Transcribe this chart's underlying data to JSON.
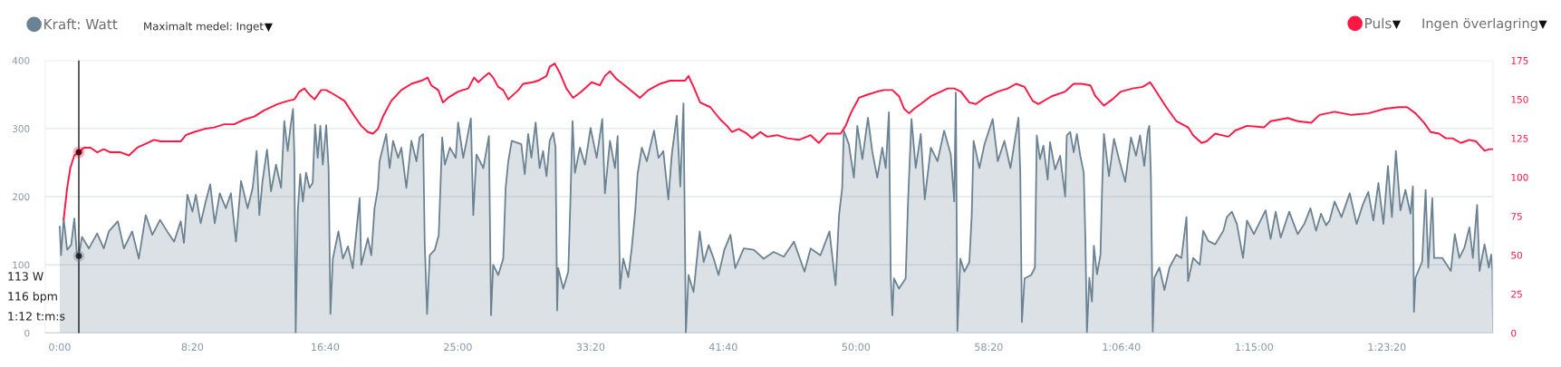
{
  "chart_data": {
    "type": "area",
    "series": [
      {
        "name": "Kraft: Watt",
        "color": "#6b8293",
        "x": [
          0,
          5,
          15,
          28,
          43,
          55,
          65,
          72,
          84,
          110,
          141,
          166,
          185,
          219,
          242,
          273,
          298,
          324,
          349,
          378,
          405,
          431,
          456,
          468,
          481,
          500,
          513,
          531,
          550,
          567,
          584,
          603,
          626,
          645,
          664,
          683,
          708,
          727,
          742,
          752,
          764,
          781,
          796,
          815,
          834,
          846,
          859,
          869,
          879,
          884,
          889,
          897,
          906,
          916,
          928,
          941,
          953,
          962,
          972,
          982,
          991,
          1004,
          1013,
          1020,
          1029,
          1050,
          1067,
          1086,
          1104,
          1130,
          1136,
          1161,
          1174,
          1186,
          1199,
          1205,
          1230,
          1243,
          1256,
          1275,
          1287,
          1306,
          1325,
          1344,
          1356,
          1369,
          1375,
          1384,
          1394,
          1413,
          1428,
          1441,
          1451,
          1470,
          1492,
          1501,
          1520,
          1533,
          1549,
          1558,
          1570,
          1596,
          1617,
          1625,
          1633,
          1652,
          1671,
          1680,
          1690,
          1703,
          1739,
          1752,
          1765,
          1777,
          1793,
          1808,
          1821,
          1834,
          1846,
          1859,
          1868,
          1874,
          1878,
          1897,
          1916,
          1924,
          1932,
          1941,
          1960,
          1979,
          2000,
          2023,
          2044,
          2054,
          2073,
          2092,
          2102,
          2111,
          2123,
          2142,
          2155,
          2168,
          2177,
          2193,
          2212,
          2239,
          2256,
          2274,
          2293,
          2306,
          2325,
          2338,
          2350,
          2354,
          2359,
          2369,
          2388,
          2411,
          2426,
          2445,
          2464,
          2482,
          2504,
          2527,
          2545,
          2577,
          2615,
          2652,
          2690,
          2728,
          2766,
          2806,
          2829,
          2866,
          2900,
          2923,
          2936,
          2948,
          2954,
          2973,
          2992,
          3005,
          3024,
          3045,
          3061,
          3080,
          3099,
          3112,
          3124,
          3131,
          3137,
          3143,
          3162,
          3187,
          3196,
          3209,
          3225,
          3244,
          3259,
          3282,
          3307,
          3332,
          3357,
          3370,
          3376,
          3382,
          3393,
          3408,
          3427,
          3436,
          3443,
          3465,
          3484,
          3515,
          3534,
          3559,
          3582,
          3612,
          3619,
          3625,
          3635,
          3660,
          3674,
          3681,
          3693,
          3706,
          3722,
          3731,
          3750,
          3769,
          3788,
          3794,
          3807,
          3820,
          3832,
          3845,
          3858,
          3864,
          3870,
          3879,
          3889,
          3896,
          3908,
          3921,
          3927,
          3934,
          3953,
          3972,
          3991,
          4014,
          4036,
          4055,
          4070,
          4086,
          4099,
          4105,
          4111,
          4118,
          4124,
          4143,
          4162,
          4181,
          4207,
          4226,
          4245,
          4251,
          4270,
          4295,
          4308,
          4327,
          4353,
          4384,
          4397,
          4416,
          4435,
          4458,
          4473,
          4499,
          4524,
          4543,
          4562,
          4581,
          4600,
          4632,
          4664,
          4689,
          4712,
          4733,
          4752,
          4771,
          4784,
          4803,
          4829,
          4860,
          4886,
          4911,
          4930,
          4949,
          4968,
          4987,
          5004,
          5019,
          5034,
          5051,
          5070,
          5089,
          5098,
          5102,
          5108,
          5133,
          5146,
          5156,
          5171,
          5178,
          5209,
          5241,
          5256,
          5273,
          5292,
          5311,
          5324,
          5340,
          5349,
          5368,
          5384,
          5393,
          5398,
          5400
        ],
        "values": [
          156,
          114,
          168,
          122,
          129,
          168,
          114,
          113,
          141,
          124,
          146,
          124,
          149,
          164,
          124,
          149,
          109,
          173,
          144,
          166,
          149,
          134,
          164,
          132,
          203,
          178,
          203,
          161,
          193,
          218,
          161,
          205,
          183,
          205,
          134,
          223,
          183,
          213,
          267,
          173,
          223,
          269,
          208,
          247,
          213,
          311,
          267,
          301,
          329,
          262,
          0,
          178,
          233,
          193,
          235,
          213,
          220,
          306,
          257,
          304,
          247,
          305,
          242,
          28,
          109,
          149,
          109,
          127,
          95,
          198,
          100,
          139,
          114,
          183,
          213,
          252,
          292,
          242,
          282,
          257,
          272,
          213,
          282,
          252,
          287,
          292,
          134,
          28,
          114,
          122,
          144,
          287,
          247,
          272,
          257,
          309,
          257,
          282,
          315,
          173,
          262,
          242,
          289,
          26,
          100,
          85,
          109,
          213,
          252,
          282,
          277,
          233,
          292,
          257,
          309,
          242,
          267,
          230,
          282,
          294,
          272,
          33,
          95,
          65,
          90,
          193,
          311,
          235,
          272,
          247,
          301,
          257,
          314,
          205,
          282,
          242,
          289,
          65,
          109,
          82,
          124,
          178,
          233,
          272,
          252,
          297,
          257,
          267,
          196,
          262,
          319,
          215,
          337,
          193,
          0,
          85,
          60,
          149,
          104,
          129,
          109,
          85,
          122,
          144,
          95,
          124,
          122,
          109,
          119,
          112,
          134,
          90,
          124,
          114,
          149,
          70,
          173,
          213,
          297,
          277,
          228,
          304,
          255,
          316,
          267,
          228,
          272,
          242,
          324,
          80,
          26,
          80,
          65,
          80,
          193,
          314,
          242,
          292,
          196,
          272,
          252,
          297,
          262,
          193,
          353,
          3,
          109,
          90,
          104,
          173,
          282,
          242,
          277,
          314,
          252,
          282,
          242,
          316,
          233,
          16,
          80,
          85,
          96,
          290,
          255,
          275,
          225,
          280,
          240,
          260,
          200,
          290,
          295,
          265,
          292,
          260,
          235,
          140,
          1,
          81,
          46,
          128,
          86,
          115,
          210,
          292,
          230,
          285,
          255,
          222,
          287,
          260,
          290,
          245,
          295,
          304,
          230,
          2,
          81,
          96,
          63,
          96,
          115,
          110,
          170,
          76,
          110,
          100,
          150,
          135,
          130,
          150,
          170,
          178,
          160,
          110,
          165,
          145,
          165,
          180,
          138,
          178,
          140,
          178,
          145,
          160,
          183,
          150,
          175,
          158,
          165,
          193,
          170,
          205,
          160,
          190,
          207,
          165,
          220,
          160,
          245,
          170,
          267,
          180,
          210,
          175,
          215,
          31,
          81,
          105,
          210,
          96,
          198,
          110,
          110,
          91,
          145,
          110,
          125,
          155,
          110,
          188,
          91,
          130,
          96,
          115,
          91,
          0
        ]
      },
      {
        "name": "Puls",
        "type": "line",
        "axis": "y2",
        "color": "#ff1744",
        "x": [
          15,
          28,
          40,
          55,
          72,
          91,
          116,
          141,
          166,
          191,
          229,
          261,
          292,
          330,
          355,
          380,
          418,
          456,
          475,
          506,
          544,
          582,
          620,
          657,
          695,
          733,
          771,
          821,
          859,
          884,
          903,
          922,
          941,
          960,
          985,
          1004,
          1035,
          1073,
          1111,
          1136,
          1161,
          1180,
          1199,
          1218,
          1249,
          1287,
          1325,
          1363,
          1386,
          1400,
          1426,
          1444,
          1463,
          1501,
          1539,
          1561,
          1577,
          1596,
          1617,
          1633,
          1652,
          1671,
          1690,
          1728,
          1746,
          1783,
          1802,
          1834,
          1846,
          1865,
          1884,
          1909,
          1934,
          1966,
          2004,
          2035,
          2054,
          2073,
          2098,
          2136,
          2186,
          2218,
          2262,
          2300,
          2338,
          2356,
          2369,
          2388,
          2413,
          2451,
          2489,
          2514,
          2533,
          2558,
          2589,
          2608,
          2640,
          2665,
          2703,
          2741,
          2785,
          2829,
          2860,
          2892,
          2942,
          2961,
          2980,
          3011,
          3043,
          3080,
          3106,
          3137,
          3162,
          3181,
          3200,
          3219,
          3244,
          3282,
          3320,
          3345,
          3370,
          3395,
          3427,
          3452,
          3484,
          3534,
          3572,
          3603,
          3635,
          3666,
          3687,
          3737,
          3788,
          3820,
          3851,
          3883,
          3902,
          3934,
          3966,
          3998,
          4042,
          4080,
          4108,
          4131,
          4169,
          4207,
          4251,
          4270,
          4302,
          4321,
          4353,
          4403,
          4429,
          4473,
          4537,
          4562,
          4626,
          4664,
          4715,
          4746,
          4803,
          4867,
          4930,
          4994,
          5044,
          5076,
          5108,
          5140,
          5165,
          5197,
          5222,
          5247,
          5279,
          5311,
          5336,
          5368,
          5387,
          5400
        ],
        "values": [
          73,
          93,
          106,
          114,
          116,
          119,
          119,
          116,
          118,
          116,
          116,
          114,
          119,
          122,
          124,
          123,
          123,
          123,
          127,
          129,
          131,
          132,
          134,
          134,
          137,
          139,
          143,
          147,
          149,
          150,
          155,
          157,
          153,
          150,
          156,
          156,
          153,
          149,
          139,
          133,
          129,
          128,
          131,
          139,
          149,
          156,
          160,
          162,
          164,
          159,
          156,
          148,
          151,
          155,
          157,
          164,
          161,
          164,
          167,
          164,
          158,
          156,
          150,
          156,
          160,
          161,
          162,
          165,
          171,
          173,
          167,
          157,
          151,
          155,
          161,
          159,
          165,
          168,
          163,
          158,
          151,
          156,
          160,
          162,
          162,
          162,
          165,
          158,
          148,
          145,
          137,
          133,
          129,
          131,
          128,
          125,
          129,
          126,
          127,
          125,
          124,
          127,
          122,
          128,
          128,
          133,
          141,
          151,
          153,
          155,
          156,
          156,
          152,
          144,
          141,
          144,
          147,
          152,
          155,
          157,
          157,
          155,
          148,
          147,
          151,
          155,
          157,
          160,
          158,
          149,
          147,
          152,
          155,
          160,
          160,
          159,
          152,
          146,
          150,
          155,
          157,
          158,
          161,
          155,
          145,
          136,
          132,
          127,
          122,
          123,
          128,
          126,
          130,
          133,
          132,
          136,
          138,
          136,
          135,
          140,
          142,
          140,
          141,
          144,
          145,
          145,
          141,
          135,
          129,
          128,
          125,
          125,
          122,
          124,
          123,
          117,
          118,
          118
        ]
      },
      {
        "type": "scatter",
        "color": "#000000",
        "x": [
          72
        ],
        "values": [
          113
        ]
      },
      {
        "type": "scatter",
        "axis": "y2",
        "color": "#000000",
        "x": [
          72
        ],
        "values": [
          116
        ]
      }
    ],
    "xlim": [
      -55,
      5400
    ],
    "xticks": [
      {
        "value": 0,
        "label": "0:00"
      },
      {
        "value": 500,
        "label": "8:20"
      },
      {
        "value": 1000,
        "label": "16:40"
      },
      {
        "value": 1500,
        "label": "25:00"
      },
      {
        "value": 2000,
        "label": "33:20"
      },
      {
        "value": 2500,
        "label": "41:40"
      },
      {
        "value": 3000,
        "label": "50:00"
      },
      {
        "value": 3500,
        "label": "58:20"
      },
      {
        "value": 4000,
        "label": "1:06:40"
      },
      {
        "value": 4500,
        "label": "1:15:00"
      },
      {
        "value": 5000,
        "label": "1:23:20"
      }
    ],
    "ylim": [
      0,
      400
    ],
    "yticks": [
      0,
      100,
      200,
      300,
      400
    ],
    "y2lim": [
      0,
      175
    ],
    "y2ticks": [
      0,
      25,
      50,
      75,
      100,
      125,
      150,
      175
    ],
    "grid": "y",
    "legend": "top",
    "ref_lines": [
      {
        "axis": "x",
        "value": 72,
        "color": "#000000"
      }
    ],
    "annotations": [
      "Maximalt medel: Inget",
      "Ingen överlagring",
      "113 W",
      "116 bpm",
      "1:12 t:m:s"
    ]
  }
}
